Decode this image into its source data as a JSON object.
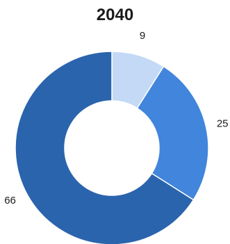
{
  "chart_data": {
    "type": "pie",
    "title": "2040",
    "donut": true,
    "slices": [
      {
        "label": "9",
        "value": 9,
        "color": "#c3d9f5"
      },
      {
        "label": "25",
        "value": 25,
        "color": "#4185dc"
      },
      {
        "label": "66",
        "value": 66,
        "color": "#2a64ad"
      }
    ],
    "start_angle_deg": 0,
    "direction": "clockwise",
    "legend": "none"
  }
}
